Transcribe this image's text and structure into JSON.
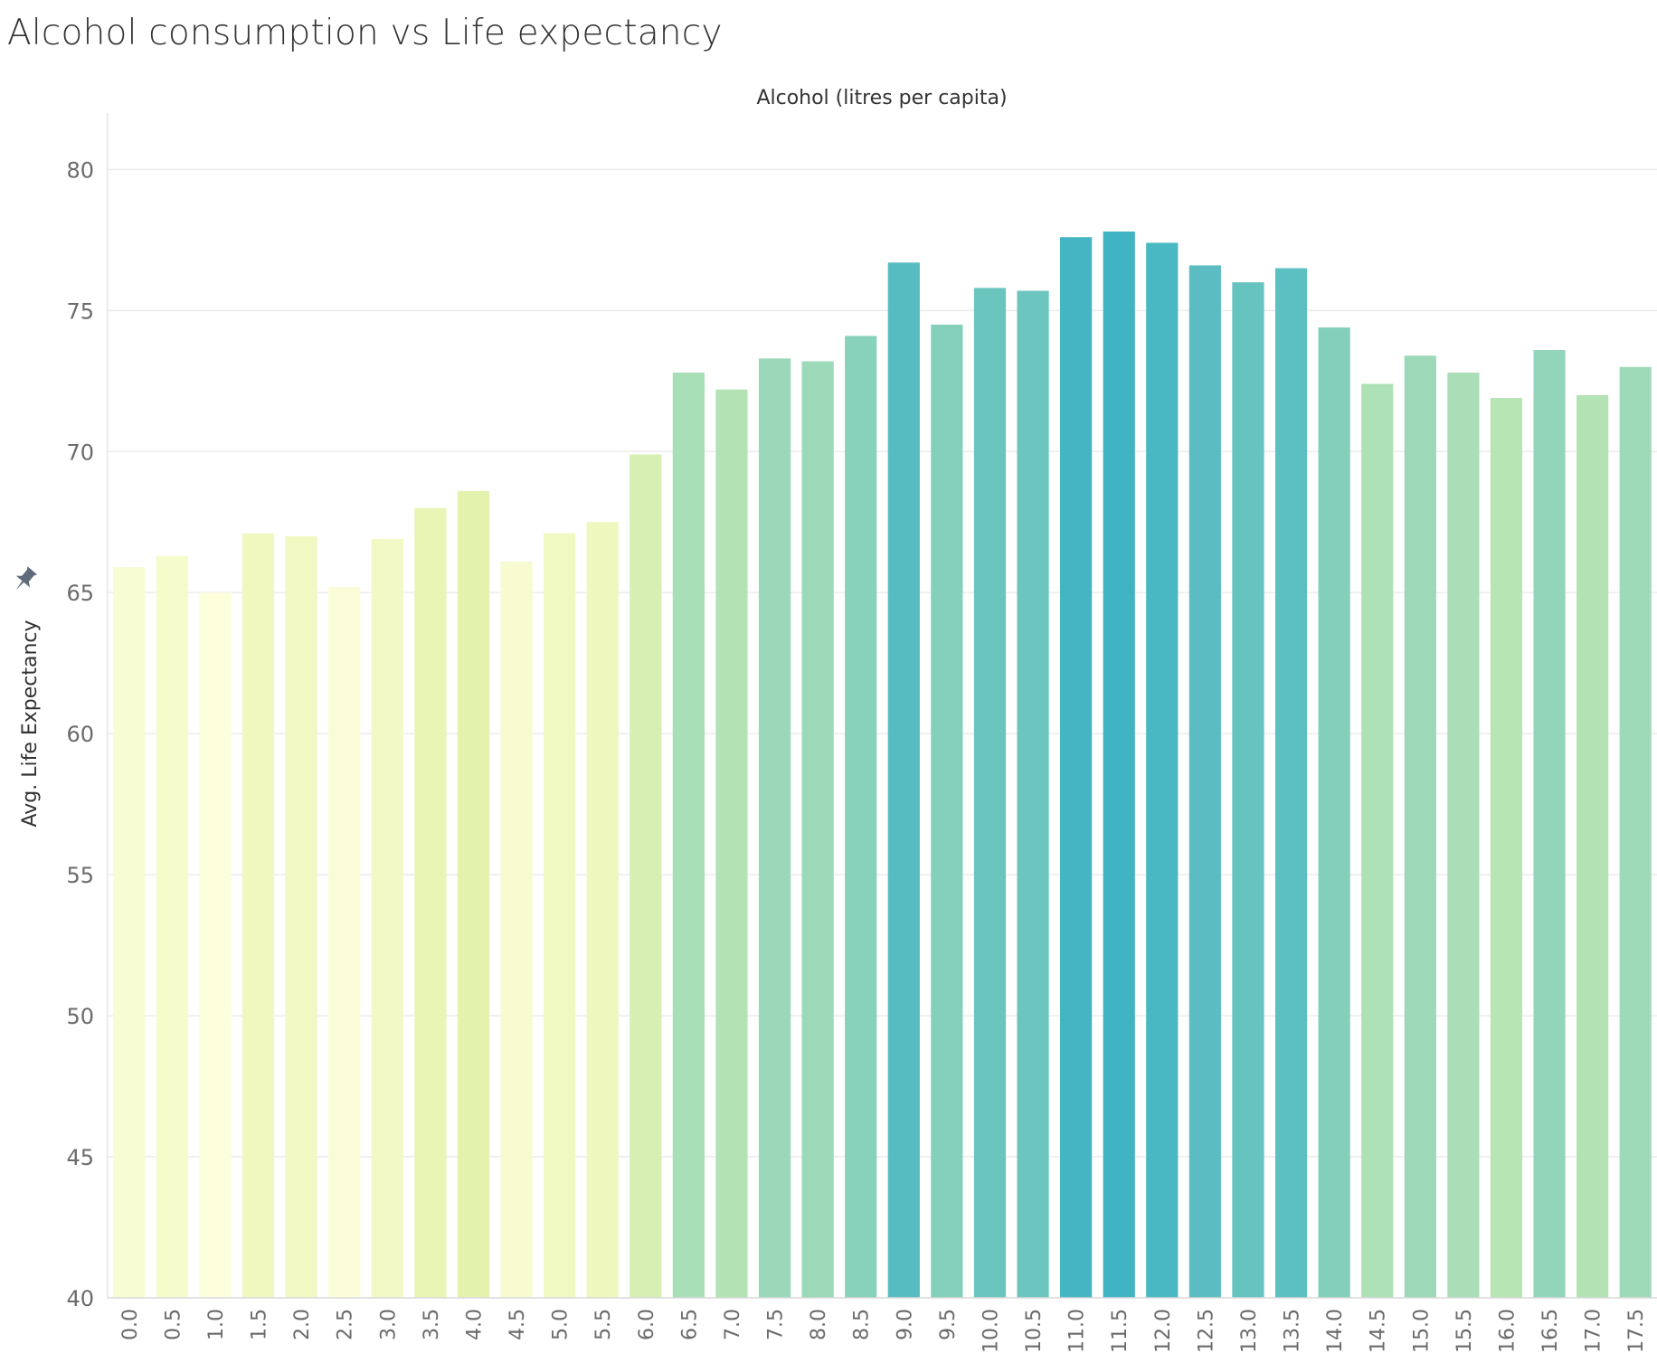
{
  "chart_data": {
    "type": "bar",
    "title": "Alcohol consumption vs Life expectancy",
    "xlabel": "Alcohol (litres per capita)",
    "ylabel": "Avg. Life Expectancy",
    "ylim": [
      40,
      82
    ],
    "yticks": [
      "40",
      "45",
      "50",
      "55",
      "60",
      "65",
      "70",
      "75",
      "80"
    ],
    "grid": true,
    "categories": [
      "0.0",
      "0.5",
      "1.0",
      "1.5",
      "2.0",
      "2.5",
      "3.0",
      "3.5",
      "4.0",
      "4.5",
      "5.0",
      "5.5",
      "6.0",
      "6.5",
      "7.0",
      "7.5",
      "8.0",
      "8.5",
      "9.0",
      "9.5",
      "10.0",
      "10.5",
      "11.0",
      "11.5",
      "12.0",
      "12.5",
      "13.0",
      "13.5",
      "14.0",
      "14.5",
      "15.0",
      "15.5",
      "16.0",
      "16.5",
      "17.0",
      "17.5"
    ],
    "values": [
      65.9,
      66.3,
      65.0,
      67.1,
      67.0,
      65.2,
      66.9,
      68.0,
      68.6,
      66.1,
      67.1,
      67.5,
      69.9,
      72.8,
      72.2,
      73.3,
      73.2,
      74.1,
      76.7,
      74.5,
      75.8,
      75.7,
      77.6,
      77.8,
      77.4,
      76.6,
      76.0,
      76.5,
      74.4,
      72.4,
      73.4,
      72.8,
      71.9,
      73.6,
      72.0,
      73.0
    ],
    "colors": [
      "#f8fcd2",
      "#f6fbcc",
      "#fdfedc",
      "#f0f8c0",
      "#f1f8c3",
      "#fcfdd8",
      "#f3f9c6",
      "#e8f5b4",
      "#e3f3ae",
      "#f7fbcf",
      "#f1f9c3",
      "#eef7bd",
      "#d6efb3",
      "#a9dfb6",
      "#b3e3b4",
      "#9ad8b9",
      "#9bd9b9",
      "#88d1bb",
      "#56bcc1",
      "#85d0bb",
      "#6ac5bf",
      "#6cc6bf",
      "#45b5c4",
      "#41b4c4",
      "#4ab8c3",
      "#5bbdc1",
      "#67c3bf",
      "#5cbfc1",
      "#84cfbc",
      "#aee1b5",
      "#9dd9b9",
      "#a9deb6",
      "#b7e5b3",
      "#93d5ba",
      "#b3e3b4",
      "#9fdab8"
    ],
    "axis_pin_icon": "pin-icon"
  }
}
